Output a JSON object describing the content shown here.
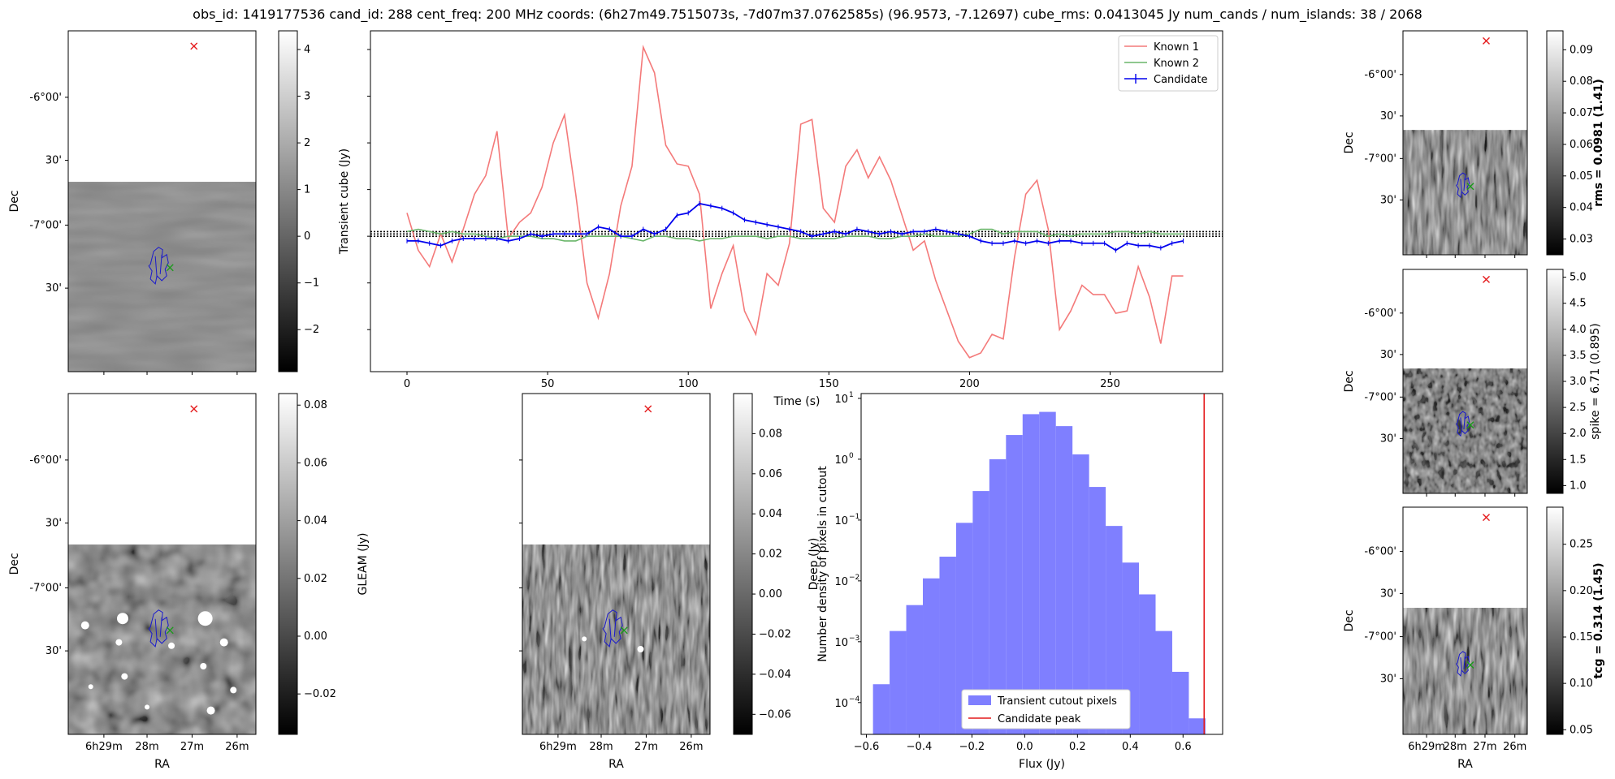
{
  "title": "obs_id: 1419177536 cand_id: 288 cent_freq: 200 MHz coords: (6h27m49.7515073s, -7d07m37.0762585s) (96.9573, -7.12697) cube_rms: 0.0413045 Jy num_cands / num_islands: 38 / 2068",
  "colors": {
    "known1": "#f47a7a",
    "known2": "#6ab66a",
    "candidate": "#0000ee",
    "hist": "#7f7fff",
    "peak": "#e41a1c",
    "marker_red": "#e41a1c",
    "marker_green": "#1a9a1a",
    "contour": "#1a1acc"
  },
  "chart_data": [
    {
      "id": "transient-image",
      "type": "heatmap",
      "xlabel": "",
      "ylabel": "Dec",
      "yticks": [
        "-6°00'",
        "30'",
        "-7°00'",
        "30'"
      ],
      "xticks": [],
      "colorbar": {
        "label": "Transient cube (Jy)",
        "ticks": [
          "4",
          "3",
          "2",
          "1",
          "0",
          "−1",
          "−2"
        ],
        "range": [
          -2.9,
          4.4
        ]
      }
    },
    {
      "id": "lightcurve",
      "type": "line",
      "xlabel": "Time (s)",
      "ylabel": "",
      "xlim": [
        -13,
        290
      ],
      "ylim": [
        -2.9,
        4.4
      ],
      "xticks": [
        "0",
        "50",
        "100",
        "150",
        "200",
        "250"
      ],
      "legend_position": "top-right",
      "x": [
        0,
        4,
        8,
        12,
        16,
        20,
        24,
        28,
        32,
        36,
        40,
        44,
        48,
        52,
        56,
        60,
        64,
        68,
        72,
        76,
        80,
        84,
        88,
        92,
        96,
        100,
        104,
        108,
        112,
        116,
        120,
        124,
        128,
        132,
        136,
        140,
        144,
        148,
        152,
        156,
        160,
        164,
        168,
        172,
        176,
        180,
        184,
        188,
        192,
        196,
        200,
        204,
        208,
        212,
        216,
        220,
        224,
        228,
        232,
        236,
        240,
        244,
        248,
        252,
        256,
        260,
        264,
        268,
        272,
        276
      ],
      "series": [
        {
          "name": "Known 1",
          "values": [
            0.5,
            -0.3,
            -0.65,
            0.05,
            -0.55,
            0.15,
            0.9,
            1.3,
            2.25,
            -0.05,
            0.3,
            0.5,
            1.05,
            2.0,
            2.6,
            0.9,
            -1.0,
            -1.75,
            -0.8,
            0.65,
            1.5,
            4.05,
            3.5,
            1.95,
            1.55,
            1.5,
            0.9,
            -1.55,
            -0.8,
            -0.2,
            -1.6,
            -2.1,
            -0.8,
            -1.05,
            -0.15,
            2.4,
            2.5,
            0.6,
            0.3,
            1.5,
            1.85,
            1.25,
            1.7,
            1.2,
            0.45,
            -0.3,
            -0.1,
            -0.95,
            -1.6,
            -2.25,
            -2.6,
            -2.5,
            -2.1,
            -2.2,
            -0.45,
            0.9,
            1.2,
            0.15,
            -2.0,
            -1.6,
            -1.05,
            -1.25,
            -1.25,
            -1.65,
            -1.6,
            -0.65,
            -1.3,
            -2.3,
            -0.85,
            -0.85
          ]
        },
        {
          "name": "Known 2",
          "values": [
            0.1,
            0.15,
            0.1,
            0.05,
            0.1,
            0.05,
            0.05,
            0.0,
            -0.05,
            0.0,
            0.0,
            0.0,
            -0.05,
            -0.05,
            -0.1,
            -0.1,
            0.0,
            0.0,
            0.0,
            0.0,
            -0.05,
            -0.1,
            0.0,
            0.0,
            -0.05,
            -0.05,
            -0.1,
            -0.05,
            -0.05,
            0.0,
            0.0,
            0.0,
            -0.05,
            0.0,
            0.0,
            -0.05,
            -0.05,
            -0.05,
            -0.05,
            0.0,
            0.0,
            0.0,
            -0.05,
            -0.05,
            0.0,
            0.0,
            0.05,
            0.0,
            0.0,
            0.0,
            0.05,
            0.15,
            0.15,
            0.05,
            0.1,
            0.1,
            0.1,
            0.0,
            0.05,
            0.0,
            0.05,
            0.05,
            0.05,
            0.1,
            0.1,
            0.05,
            0.1,
            0.05,
            0.05,
            0.05
          ]
        },
        {
          "name": "Candidate",
          "values": [
            -0.1,
            -0.1,
            -0.15,
            -0.2,
            -0.1,
            -0.05,
            -0.05,
            -0.05,
            -0.05,
            -0.1,
            -0.05,
            0.05,
            0.0,
            0.05,
            0.05,
            0.05,
            0.05,
            0.2,
            0.15,
            0.0,
            0.0,
            0.15,
            0.05,
            0.15,
            0.45,
            0.5,
            0.7,
            0.65,
            0.6,
            0.5,
            0.35,
            0.3,
            0.25,
            0.2,
            0.15,
            0.1,
            0.0,
            0.05,
            0.1,
            0.05,
            0.15,
            0.1,
            0.05,
            0.1,
            0.05,
            0.1,
            0.1,
            0.15,
            0.1,
            0.05,
            0.0,
            -0.1,
            -0.15,
            -0.15,
            -0.1,
            -0.15,
            -0.1,
            -0.15,
            -0.1,
            -0.1,
            -0.15,
            -0.15,
            -0.15,
            -0.3,
            -0.15,
            -0.2,
            -0.2,
            -0.25,
            -0.15,
            -0.1
          ]
        }
      ],
      "hlines": [
        0.0,
        0.05,
        0.1
      ]
    },
    {
      "id": "gleam-image",
      "type": "heatmap",
      "xlabel": "RA",
      "ylabel": "Dec",
      "yticks": [
        "-6°00'",
        "30'",
        "-7°00'",
        "30'"
      ],
      "xticks": [
        "6h29m",
        "28m",
        "27m",
        "26m"
      ],
      "colorbar": {
        "label": "GLEAM (Jy)",
        "ticks": [
          "0.08",
          "0.06",
          "0.04",
          "0.02",
          "0.00",
          "−0.02"
        ],
        "range": [
          -0.034,
          0.084
        ]
      }
    },
    {
      "id": "deep-image",
      "type": "heatmap",
      "xlabel": "RA",
      "ylabel": "",
      "yticks": [],
      "xticks": [
        "6h29m",
        "28m",
        "27m",
        "26m"
      ],
      "colorbar": {
        "label": "Deep (Jy)",
        "ticks": [
          "0.08",
          "0.06",
          "0.04",
          "0.02",
          "0.00",
          "−0.02",
          "−0.04",
          "−0.06"
        ],
        "range": [
          -0.07,
          0.1
        ]
      }
    },
    {
      "id": "histogram",
      "type": "bar",
      "xlabel": "Flux (Jy)",
      "ylabel": "Number density of pixels in cutout",
      "yscale": "log",
      "xlim": [
        -0.62,
        0.75
      ],
      "ylim": [
        3e-05,
        12
      ],
      "xticks": [
        "−0.6",
        "−0.4",
        "−0.2",
        "0.0",
        "0.2",
        "0.4",
        "0.6"
      ],
      "xtick_values": [
        -0.6,
        -0.4,
        -0.2,
        0.0,
        0.2,
        0.4,
        0.6
      ],
      "ytick_values": [
        0.0001,
        0.001,
        0.01,
        0.1,
        1,
        10
      ],
      "ytick_labels": [
        "10",
        "10",
        "10",
        "10",
        "10",
        "10"
      ],
      "ytick_exponents": [
        "−4",
        "−3",
        "−2",
        "−1",
        "0",
        "1"
      ],
      "bin_edges": [
        -0.575,
        -0.512,
        -0.449,
        -0.386,
        -0.323,
        -0.26,
        -0.197,
        -0.134,
        -0.071,
        -0.008,
        0.055,
        0.118,
        0.181,
        0.244,
        0.307,
        0.37,
        0.433,
        0.496,
        0.559,
        0.622,
        0.685
      ],
      "values": [
        0.0002,
        0.0015,
        0.004,
        0.011,
        0.025,
        0.09,
        0.3,
        1.0,
        2.5,
        5.5,
        6.0,
        3.5,
        1.2,
        0.35,
        0.08,
        0.02,
        0.006,
        0.0015,
        0.00032,
        5.5e-05
      ],
      "vline": 0.68,
      "legend_position": "bottom-center",
      "series": [
        {
          "name": "Transient cutout pixels"
        },
        {
          "name": "Candidate peak"
        }
      ]
    },
    {
      "id": "rms-image",
      "type": "heatmap",
      "ylabel": "Dec",
      "yticks": [
        "-6°00'",
        "30'",
        "-7°00'",
        "30'"
      ],
      "colorbar": {
        "label": "rms = 0.0981 (1.41)",
        "bold": true,
        "ticks": [
          "0.09",
          "0.08",
          "0.07",
          "0.06",
          "0.05",
          "0.04",
          "0.03"
        ],
        "range": [
          0.025,
          0.096
        ]
      }
    },
    {
      "id": "spike-image",
      "type": "heatmap",
      "ylabel": "Dec",
      "yticks": [
        "-6°00'",
        "30'",
        "-7°00'",
        "30'"
      ],
      "colorbar": {
        "label": "spike = 6.71 (0.895)",
        "bold": false,
        "ticks": [
          "5.0",
          "4.5",
          "4.0",
          "3.5",
          "3.0",
          "2.5",
          "2.0",
          "1.5",
          "1.0"
        ],
        "range": [
          0.85,
          5.15
        ]
      }
    },
    {
      "id": "tcg-image",
      "type": "heatmap",
      "xlabel": "RA",
      "ylabel": "Dec",
      "yticks": [
        "-6°00'",
        "30'",
        "-7°00'",
        "30'"
      ],
      "xticks": [
        "6h29m",
        "28m",
        "27m",
        "26m"
      ],
      "colorbar": {
        "label": "tcg = 0.314 (1.45)",
        "bold": true,
        "ticks": [
          "0.25",
          "0.20",
          "0.15",
          "0.10",
          "0.05"
        ],
        "range": [
          0.045,
          0.29
        ]
      }
    }
  ]
}
